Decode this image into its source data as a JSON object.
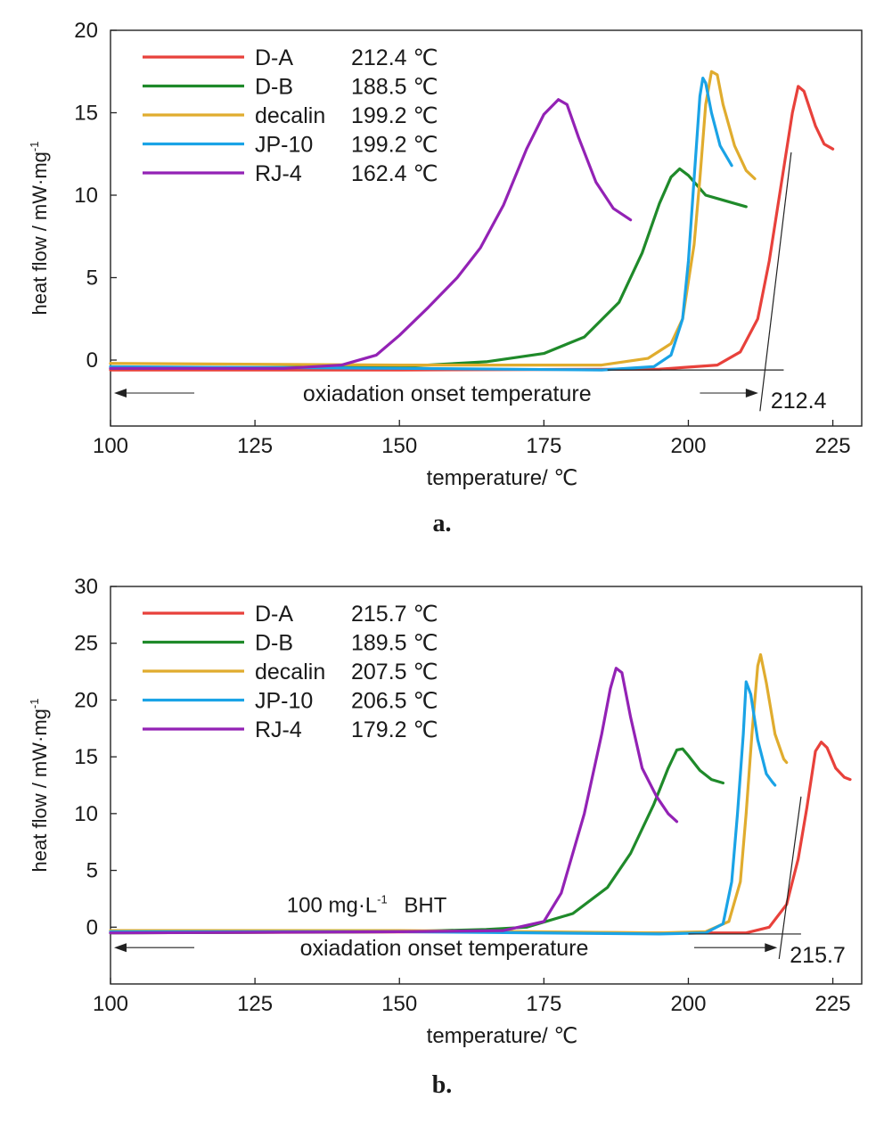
{
  "chart_data": [
    {
      "id": "a",
      "type": "line",
      "panel_label": "a.",
      "xlabel": "temperature/ ℃",
      "ylabel": "heat flow / mW·mg",
      "ylabel_sup": "-1",
      "xlim": [
        100,
        230
      ],
      "ylim": [
        -4,
        20
      ],
      "xticks": [
        100,
        125,
        150,
        175,
        200,
        225
      ],
      "yticks": [
        0,
        5,
        10,
        15,
        20
      ],
      "grid": false,
      "legend_position": "top-left",
      "annotations": {
        "onset_text": "oxiadation onset temperature",
        "onset_value": "212.4",
        "bht_text": "",
        "bht_sup": "",
        "bht_tail": ""
      },
      "series": [
        {
          "name": "D-A",
          "onset": "212.4 ℃",
          "color": "#e8413b",
          "points": [
            [
              100,
              -0.6
            ],
            [
              150,
              -0.6
            ],
            [
              195,
              -0.55
            ],
            [
              205,
              -0.3
            ],
            [
              209,
              0.5
            ],
            [
              212,
              2.5
            ],
            [
              214,
              6
            ],
            [
              216,
              10.5
            ],
            [
              218,
              15
            ],
            [
              219,
              16.6
            ],
            [
              220,
              16.3
            ],
            [
              222,
              14.2
            ],
            [
              223.5,
              13.1
            ],
            [
              225,
              12.8
            ]
          ]
        },
        {
          "name": "D-B",
          "onset": "188.5 ℃",
          "color": "#1f8a2a",
          "points": [
            [
              100,
              -0.5
            ],
            [
              150,
              -0.4
            ],
            [
              165,
              -0.1
            ],
            [
              175,
              0.4
            ],
            [
              182,
              1.4
            ],
            [
              188,
              3.5
            ],
            [
              192,
              6.5
            ],
            [
              195,
              9.5
            ],
            [
              197,
              11.1
            ],
            [
              198.5,
              11.6
            ],
            [
              200,
              11.2
            ],
            [
              203,
              10
            ],
            [
              206,
              9.7
            ],
            [
              210,
              9.3
            ]
          ]
        },
        {
          "name": "decalin",
          "onset": "199.2 ℃",
          "color": "#e0ac2e",
          "points": [
            [
              100,
              -0.2
            ],
            [
              150,
              -0.3
            ],
            [
              185,
              -0.3
            ],
            [
              193,
              0.1
            ],
            [
              197,
              1
            ],
            [
              199,
              2.5
            ],
            [
              201,
              7
            ],
            [
              202,
              11
            ],
            [
              203,
              15.5
            ],
            [
              204,
              17.5
            ],
            [
              205,
              17.3
            ],
            [
              206,
              15.5
            ],
            [
              208,
              13
            ],
            [
              210,
              11.5
            ],
            [
              211.5,
              11
            ]
          ]
        },
        {
          "name": "JP-10",
          "onset": "199.2 ℃",
          "color": "#1aa3e6",
          "points": [
            [
              100,
              -0.4
            ],
            [
              150,
              -0.5
            ],
            [
              185,
              -0.6
            ],
            [
              194,
              -0.4
            ],
            [
              197,
              0.3
            ],
            [
              199,
              2.5
            ],
            [
              200,
              6
            ],
            [
              201,
              11
            ],
            [
              202,
              16
            ],
            [
              202.5,
              17.1
            ],
            [
              203,
              16.8
            ],
            [
              204,
              15
            ],
            [
              205.5,
              13
            ],
            [
              207.5,
              11.8
            ]
          ]
        },
        {
          "name": "RJ-4",
          "onset": "162.4 ℃",
          "color": "#9322b5",
          "points": [
            [
              100,
              -0.5
            ],
            [
              130,
              -0.5
            ],
            [
              140,
              -0.3
            ],
            [
              146,
              0.3
            ],
            [
              150,
              1.5
            ],
            [
              155,
              3.2
            ],
            [
              160,
              5
            ],
            [
              164,
              6.8
            ],
            [
              168,
              9.4
            ],
            [
              172,
              12.8
            ],
            [
              175,
              14.9
            ],
            [
              177.5,
              15.8
            ],
            [
              179,
              15.5
            ],
            [
              181,
              13.5
            ],
            [
              184,
              10.8
            ],
            [
              187,
              9.2
            ],
            [
              190,
              8.5
            ]
          ]
        }
      ]
    },
    {
      "id": "b",
      "type": "line",
      "panel_label": "b.",
      "xlabel": "temperature/ ℃",
      "ylabel": "heat flow / mW·mg",
      "ylabel_sup": "-1",
      "xlim": [
        100,
        230
      ],
      "ylim": [
        -5,
        30
      ],
      "xticks": [
        100,
        125,
        150,
        175,
        200,
        225
      ],
      "yticks": [
        0,
        5,
        10,
        15,
        20,
        25,
        30
      ],
      "grid": false,
      "legend_position": "top-left",
      "annotations": {
        "onset_text": "oxiadation onset temperature",
        "onset_value": "215.7",
        "bht_text": "100 mg·L",
        "bht_sup": "-1",
        "bht_tail": "BHT"
      },
      "series": [
        {
          "name": "D-A",
          "onset": "215.7 ℃",
          "color": "#e8413b",
          "points": [
            [
              100,
              -0.5
            ],
            [
              160,
              -0.4
            ],
            [
              195,
              -0.5
            ],
            [
              210,
              -0.5
            ],
            [
              214,
              0
            ],
            [
              217,
              2
            ],
            [
              219,
              6
            ],
            [
              220.5,
              10.5
            ],
            [
              222,
              15.5
            ],
            [
              223,
              16.3
            ],
            [
              224,
              15.8
            ],
            [
              225.5,
              14
            ],
            [
              227,
              13.2
            ],
            [
              228,
              13
            ]
          ]
        },
        {
          "name": "D-B",
          "onset": "189.5 ℃",
          "color": "#1f8a2a",
          "points": [
            [
              100,
              -0.5
            ],
            [
              150,
              -0.4
            ],
            [
              165,
              -0.2
            ],
            [
              172,
              0
            ],
            [
              180,
              1.2
            ],
            [
              186,
              3.5
            ],
            [
              190,
              6.5
            ],
            [
              194,
              10.8
            ],
            [
              196.5,
              14
            ],
            [
              198,
              15.6
            ],
            [
              199,
              15.7
            ],
            [
              200,
              15.1
            ],
            [
              202,
              13.8
            ],
            [
              204,
              13
            ],
            [
              206,
              12.7
            ]
          ]
        },
        {
          "name": "decalin",
          "onset": "207.5 ℃",
          "color": "#e0ac2e",
          "points": [
            [
              100,
              -0.3
            ],
            [
              150,
              -0.3
            ],
            [
              195,
              -0.5
            ],
            [
              203,
              -0.4
            ],
            [
              207,
              0.5
            ],
            [
              209,
              4
            ],
            [
              210,
              10
            ],
            [
              211,
              17
            ],
            [
              212,
              23
            ],
            [
              212.5,
              24
            ],
            [
              213.5,
              21.5
            ],
            [
              215,
              17
            ],
            [
              216.5,
              14.8
            ],
            [
              217,
              14.5
            ]
          ]
        },
        {
          "name": "JP-10",
          "onset": "206.5 ℃",
          "color": "#1aa3e6",
          "points": [
            [
              100,
              -0.4
            ],
            [
              150,
              -0.4
            ],
            [
              195,
              -0.6
            ],
            [
              203,
              -0.5
            ],
            [
              206,
              0.3
            ],
            [
              207.5,
              4
            ],
            [
              208.5,
              10
            ],
            [
              209.5,
              17
            ],
            [
              210,
              21.6
            ],
            [
              210.8,
              20.5
            ],
            [
              212,
              16.5
            ],
            [
              213.5,
              13.5
            ],
            [
              214.5,
              12.8
            ],
            [
              215,
              12.5
            ]
          ]
        },
        {
          "name": "RJ-4",
          "onset": "179.2 ℃",
          "color": "#9322b5",
          "points": [
            [
              100,
              -0.5
            ],
            [
              150,
              -0.4
            ],
            [
              168,
              -0.3
            ],
            [
              175,
              0.5
            ],
            [
              178,
              3
            ],
            [
              182,
              10
            ],
            [
              185,
              17
            ],
            [
              186.5,
              21
            ],
            [
              187.5,
              22.8
            ],
            [
              188.5,
              22.4
            ],
            [
              190,
              18.5
            ],
            [
              192,
              14
            ],
            [
              194.5,
              11.5
            ],
            [
              196.5,
              10
            ],
            [
              198,
              9.3
            ]
          ]
        }
      ]
    }
  ]
}
